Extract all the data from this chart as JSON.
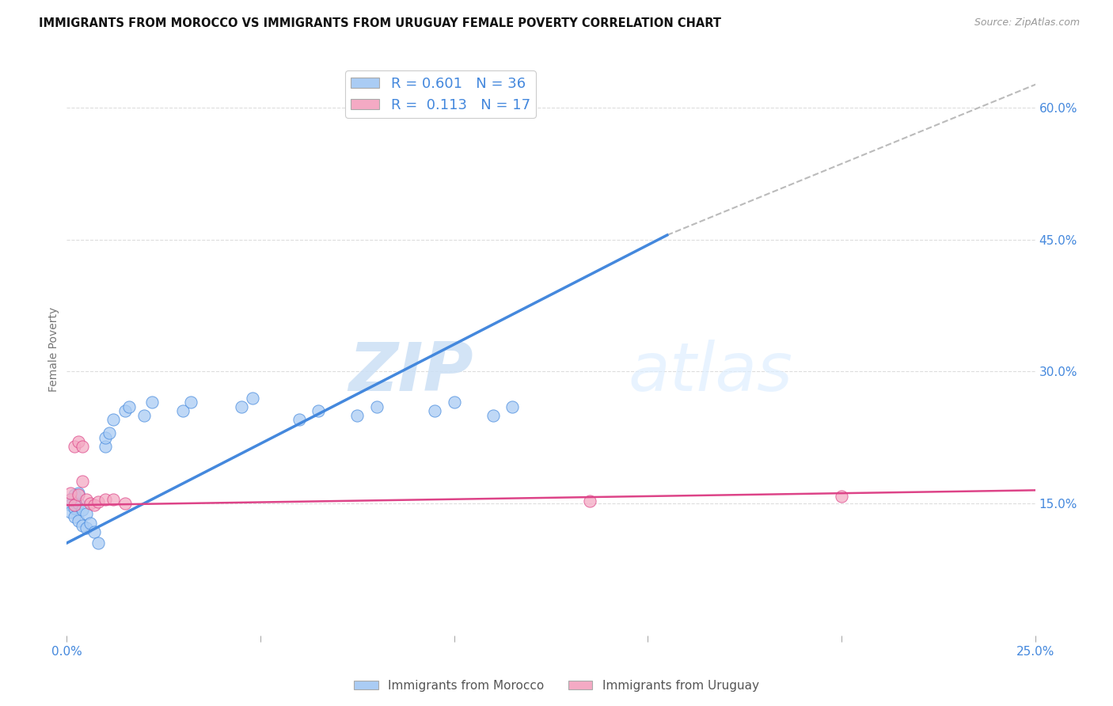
{
  "title": "IMMIGRANTS FROM MOROCCO VS IMMIGRANTS FROM URUGUAY FEMALE POVERTY CORRELATION CHART",
  "source": "Source: ZipAtlas.com",
  "ylabel": "Female Poverty",
  "xlim": [
    0.0,
    0.25
  ],
  "ylim": [
    0.0,
    0.65
  ],
  "x_ticks": [
    0.0,
    0.05,
    0.1,
    0.15,
    0.2,
    0.25
  ],
  "x_tick_labels": [
    "0.0%",
    "",
    "",
    "",
    "",
    "25.0%"
  ],
  "y_ticks": [
    0.15,
    0.3,
    0.45,
    0.6
  ],
  "y_tick_labels": [
    "15.0%",
    "30.0%",
    "45.0%",
    "60.0%"
  ],
  "R_morocco": 0.601,
  "N_morocco": 36,
  "R_uruguay": 0.113,
  "N_uruguay": 17,
  "color_morocco": "#aaccf4",
  "color_uruguay": "#f4aac4",
  "line_color_morocco": "#4488dd",
  "line_color_uruguay": "#dd4488",
  "diagonal_color": "#bbbbbb",
  "background_color": "#ffffff",
  "watermark_zip": "ZIP",
  "watermark_atlas": "atlas",
  "legend_label_morocco": "Immigrants from Morocco",
  "legend_label_uruguay": "Immigrants from Uruguay",
  "morocco_x": [
    0.001,
    0.001,
    0.001,
    0.002,
    0.002,
    0.002,
    0.003,
    0.003,
    0.003,
    0.004,
    0.004,
    0.005,
    0.005,
    0.006,
    0.007,
    0.008,
    0.01,
    0.01,
    0.011,
    0.012,
    0.015,
    0.016,
    0.02,
    0.022,
    0.03,
    0.032,
    0.045,
    0.048,
    0.06,
    0.065,
    0.075,
    0.08,
    0.095,
    0.1,
    0.11,
    0.115
  ],
  "morocco_y": [
    0.155,
    0.148,
    0.14,
    0.16,
    0.145,
    0.135,
    0.15,
    0.162,
    0.13,
    0.143,
    0.125,
    0.138,
    0.122,
    0.128,
    0.118,
    0.105,
    0.215,
    0.225,
    0.23,
    0.245,
    0.255,
    0.26,
    0.25,
    0.265,
    0.255,
    0.265,
    0.26,
    0.27,
    0.245,
    0.255,
    0.25,
    0.26,
    0.255,
    0.265,
    0.25,
    0.26
  ],
  "uruguay_x": [
    0.001,
    0.001,
    0.002,
    0.002,
    0.003,
    0.003,
    0.004,
    0.004,
    0.005,
    0.006,
    0.007,
    0.008,
    0.01,
    0.012,
    0.015,
    0.135,
    0.2
  ],
  "uruguay_y": [
    0.155,
    0.162,
    0.148,
    0.215,
    0.16,
    0.22,
    0.175,
    0.215,
    0.155,
    0.15,
    0.148,
    0.152,
    0.155,
    0.155,
    0.15,
    0.153,
    0.158
  ],
  "morocco_line_x": [
    0.0,
    0.155
  ],
  "morocco_line_y": [
    0.105,
    0.455
  ],
  "uruguay_line_x": [
    0.0,
    0.25
  ],
  "uruguay_line_y": [
    0.148,
    0.165
  ],
  "diag_line_x": [
    0.155,
    0.255
  ],
  "diag_line_y": [
    0.455,
    0.635
  ],
  "marker_size": 120
}
